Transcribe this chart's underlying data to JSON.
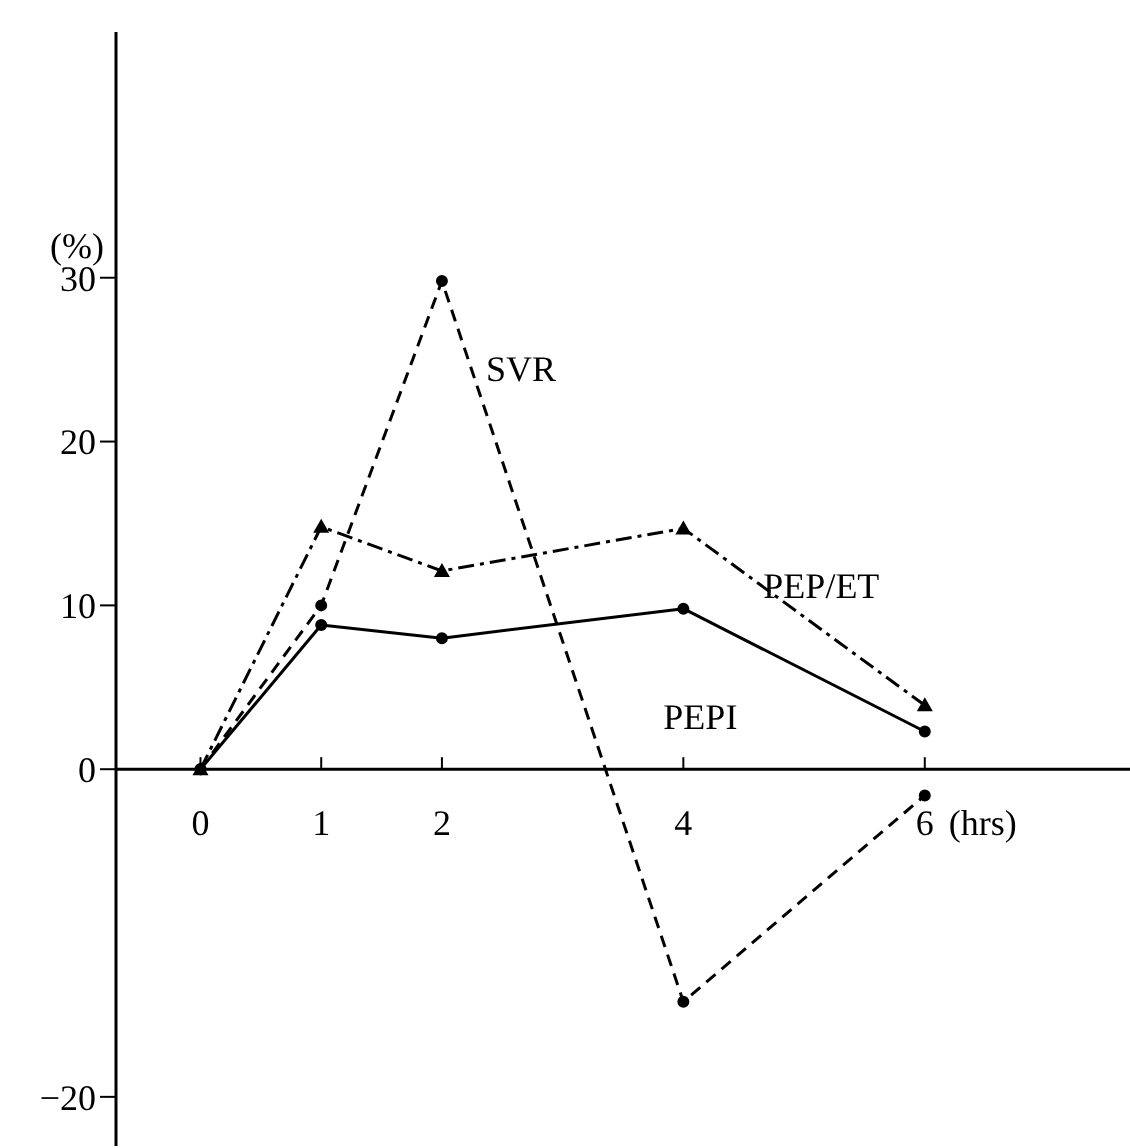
{
  "chart_data": {
    "type": "line",
    "xlabel": "(hrs)",
    "ylabel": "(%)",
    "x": [
      0,
      1,
      2,
      4,
      6
    ],
    "xlim": [
      -0.7,
      7.7
    ],
    "xticks": [
      0,
      1,
      2,
      4,
      6
    ],
    "ylim": [
      -23,
      45
    ],
    "yticks": [
      {
        "value": -20,
        "label": "−20"
      },
      0,
      10,
      20,
      30
    ],
    "series": [
      {
        "name": "SVR",
        "color": "#000000",
        "values": [
          0,
          10,
          29.8,
          -14.2,
          -1.6
        ],
        "marker": "circle",
        "line_style": "dashed"
      },
      {
        "name": "PEPI",
        "color": "#000000",
        "values": [
          0,
          8.8,
          8,
          9.8,
          2.3
        ],
        "marker": "circle",
        "line_style": "solid"
      },
      {
        "name": "PEP/ET",
        "color": "#000000",
        "values": [
          0,
          14.8,
          12.1,
          14.7,
          3.9
        ],
        "marker": "triangle",
        "line_style": "dashdot"
      }
    ]
  }
}
